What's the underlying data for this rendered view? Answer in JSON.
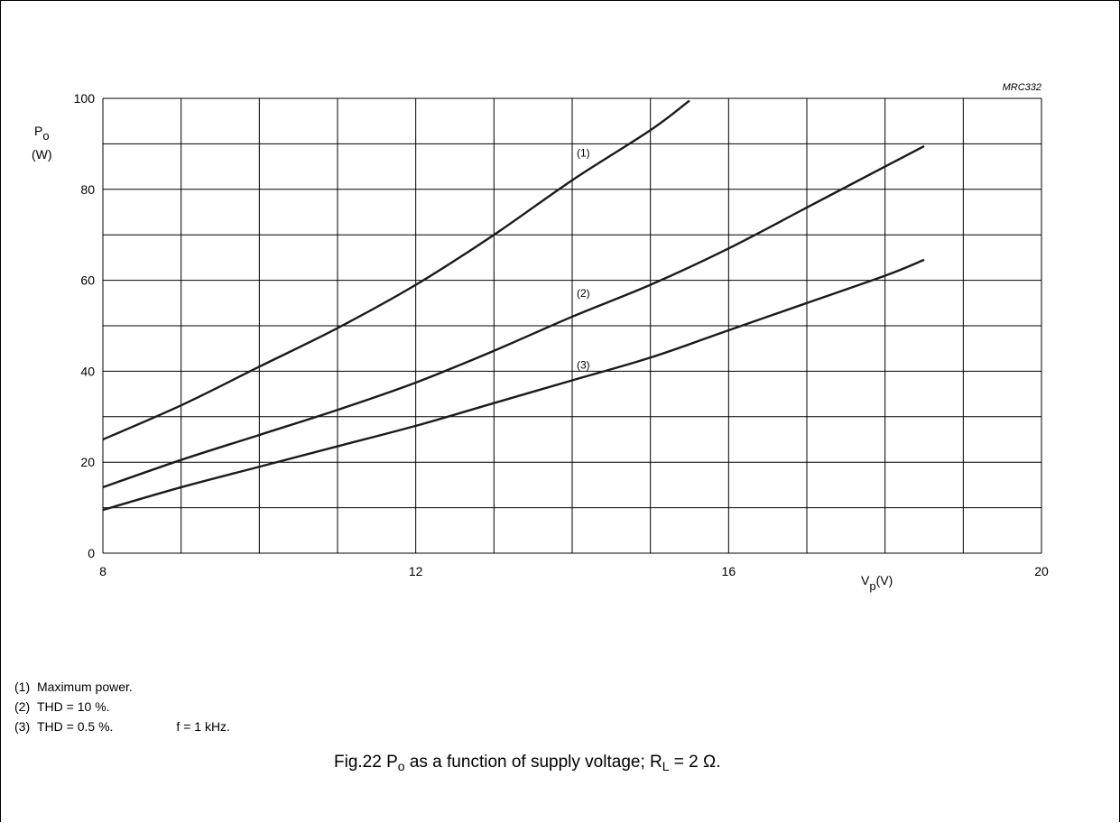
{
  "chart_data": {
    "type": "line",
    "code": "MRC332",
    "y_label": {
      "symbol": "P",
      "subscript": "o",
      "unit": "(W)"
    },
    "x_label": {
      "symbol": "V",
      "subscript": "p",
      "unit": "(V)"
    },
    "xlim": [
      8,
      20
    ],
    "ylim": [
      0,
      100
    ],
    "x_ticks": [
      "8",
      "12",
      "16",
      "20"
    ],
    "y_ticks": [
      "0",
      "20",
      "40",
      "60",
      "80",
      "100"
    ],
    "x_ticks_values": [
      8,
      12,
      16,
      20
    ],
    "y_ticks_values": [
      0,
      20,
      40,
      60,
      80,
      100
    ],
    "grid_x_step": 1,
    "grid_y_step": 10,
    "grid": true,
    "series": [
      {
        "name": "(1)",
        "x": [
          8,
          9,
          10,
          11,
          12,
          13,
          14,
          15,
          15.5
        ],
        "y": [
          25,
          32.5,
          41,
          49.5,
          59,
          70,
          82,
          93,
          99.5
        ]
      },
      {
        "name": "(2)",
        "x": [
          8,
          9,
          10,
          11,
          12,
          13,
          14,
          15,
          16,
          17,
          18,
          18.5
        ],
        "y": [
          14.5,
          20.5,
          26,
          31.5,
          37.5,
          44.5,
          52,
          59,
          67,
          76,
          85,
          89.5
        ]
      },
      {
        "name": "(3)",
        "x": [
          8,
          9,
          10,
          11,
          12,
          13,
          14,
          15,
          16,
          17,
          18,
          18.5
        ],
        "y": [
          9.5,
          14.5,
          19,
          23.5,
          28,
          33,
          38,
          43,
          49,
          55,
          61,
          64.5
        ]
      }
    ]
  },
  "notes": [
    {
      "num": "(1)",
      "text": "Maximum power.",
      "extra": ""
    },
    {
      "num": "(2)",
      "text": "THD = 10 %.",
      "extra": ""
    },
    {
      "num": "(3)",
      "text": "THD = 0.5 %.",
      "extra": "f = 1 kHz."
    }
  ],
  "caption": {
    "part1": "Fig.22  P",
    "sub1": "o",
    "part2": " as a function of supply voltage; R",
    "sub2": "L",
    "part3": " = 2 Ω."
  }
}
